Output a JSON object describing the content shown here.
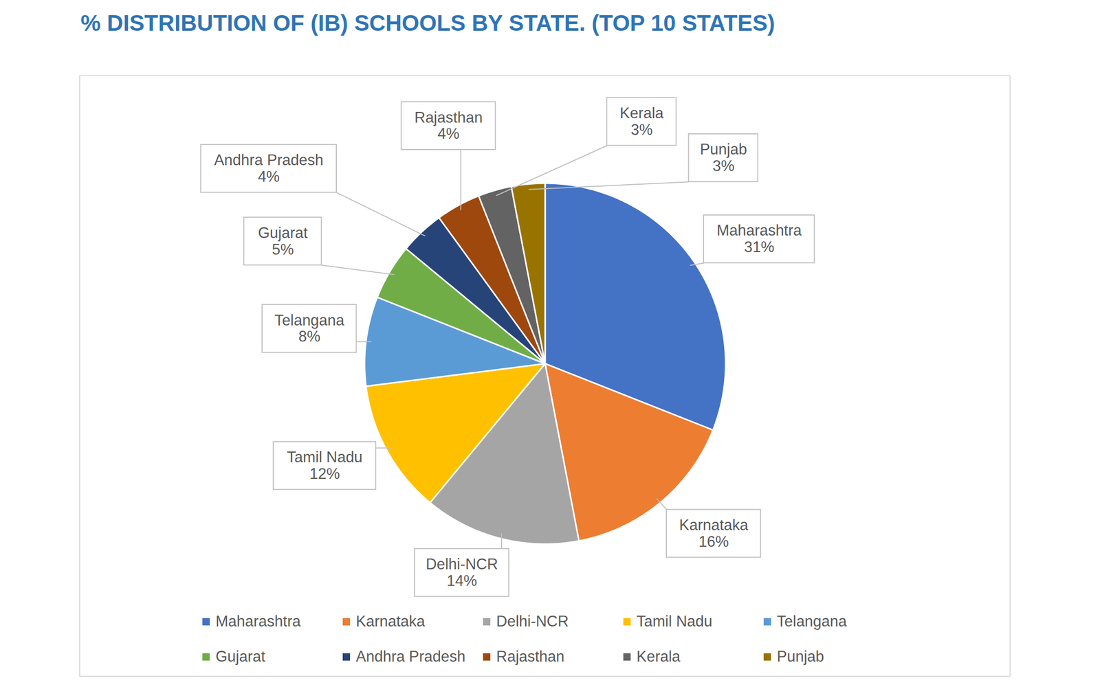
{
  "chart_data": {
    "type": "pie",
    "title": "% DISTRIBUTION OF (IB) SCHOOLS BY STATE. (TOP 10 STATES)",
    "categories": [
      "Maharashtra",
      "Karnataka",
      "Delhi-NCR",
      "Tamil Nadu",
      "Telangana",
      "Gujarat",
      "Andhra Pradesh",
      "Rajasthan",
      "Kerala",
      "Punjab"
    ],
    "values": [
      31,
      16,
      14,
      12,
      8,
      5,
      4,
      4,
      3,
      3
    ],
    "value_labels": [
      "31%",
      "16%",
      "14%",
      "12%",
      "8%",
      "5%",
      "4%",
      "4%",
      "3%",
      "3%"
    ],
    "colors": [
      "#4472C4",
      "#ED7D31",
      "#A5A5A5",
      "#FFC000",
      "#5B9BD5",
      "#70AD47",
      "#264478",
      "#9E480E",
      "#636363",
      "#997300"
    ],
    "data_labels": true,
    "legend": "bottom"
  }
}
